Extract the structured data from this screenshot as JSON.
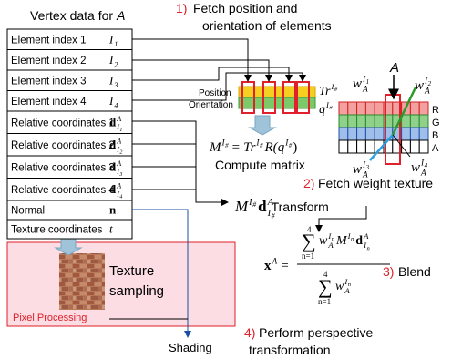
{
  "vertex_table": {
    "title": "Vertex data for",
    "title_var": "A",
    "rows": [
      {
        "label": "Element index 1",
        "symbol": {
          "base": "I",
          "sub": "1"
        }
      },
      {
        "label": "Element index 2",
        "symbol": {
          "base": "I",
          "sub": "2"
        }
      },
      {
        "label": "Element index 3",
        "symbol": {
          "base": "I",
          "sub": "3"
        }
      },
      {
        "label": "Element index 4",
        "symbol": {
          "base": "I",
          "sub": "4"
        }
      },
      {
        "label": "Relative coordinates 1",
        "symbol": {
          "base": "d",
          "bold": true,
          "sup": "A",
          "sub": "I",
          "subsub": "1"
        }
      },
      {
        "label": "Relative coordinates 2",
        "symbol": {
          "base": "d",
          "bold": true,
          "sup": "A",
          "sub": "I",
          "subsub": "2"
        }
      },
      {
        "label": "Relative coordinates 3",
        "symbol": {
          "base": "d",
          "bold": true,
          "sup": "A",
          "sub": "I",
          "subsub": "3"
        }
      },
      {
        "label": "Relative coordinates 4",
        "symbol": {
          "base": "d",
          "bold": true,
          "sup": "A",
          "sub": "I",
          "subsub": "4"
        }
      },
      {
        "label": "Normal",
        "symbol": {
          "base": "n",
          "bold": true
        }
      },
      {
        "label": "Texture coordinates",
        "symbol": {
          "base": "t"
        }
      }
    ]
  },
  "step1": {
    "number": "1)",
    "line1": "Fetch position and",
    "line2": "orientation of elements"
  },
  "element_texture": {
    "position": "Position",
    "orientation": "Orientation",
    "tr": {
      "base": "Tr",
      "sup": "I",
      "supsub": "#"
    },
    "q": {
      "base": "q",
      "sup": "I",
      "supsub": "#"
    }
  },
  "compute": {
    "m": {
      "base": "M",
      "sup": "I",
      "supsub": "#"
    },
    "equals": "=",
    "tr": {
      "base": "Tr",
      "sup": "I",
      "supsub": "#"
    },
    "r_open": "R(",
    "q": {
      "base": "q",
      "sup": "I",
      "supsub": "#"
    },
    "r_close": ")",
    "caption": "Compute matrix"
  },
  "weight_texture": {
    "marker": "A",
    "channels": [
      "R",
      "G",
      "B",
      "A"
    ],
    "weights": [
      {
        "base": "w",
        "sup": "I",
        "supsub": "1",
        "sub": "A"
      },
      {
        "base": "w",
        "sup": "I",
        "supsub": "2",
        "sub": "A"
      },
      {
        "base": "w",
        "sup": "I",
        "supsub": "3",
        "sub": "A"
      },
      {
        "base": "w",
        "sup": "I",
        "supsub": "4",
        "sub": "A"
      }
    ]
  },
  "step2": {
    "number": "2)",
    "text": "Fetch weight texture"
  },
  "transform": {
    "m": {
      "base": "M",
      "sup": "I",
      "supsub": "#"
    },
    "d": {
      "base": "d",
      "bold": true,
      "sup": "A",
      "sub": "I",
      "subsub": "#"
    },
    "caption": "Transform"
  },
  "blend": {
    "x": {
      "base": "x",
      "bold": true,
      "sup": "A"
    },
    "equals": "=",
    "numerator": {
      "sum": "∑",
      "upper": "4",
      "lower": "n=1",
      "w": {
        "base": "w",
        "sup": "I",
        "supsub": "n",
        "sub": "A"
      },
      "m": {
        "base": "M",
        "sup": "I",
        "supsub": "n"
      },
      "d": {
        "base": "d",
        "bold": true,
        "sup": "A",
        "sub": "I",
        "subsub": "n"
      }
    },
    "denominator": {
      "sum": "∑",
      "upper": "4",
      "lower": "n=1",
      "w": {
        "base": "w",
        "sup": "I",
        "supsub": "n",
        "sub": "A"
      }
    }
  },
  "step3": {
    "number": "3)",
    "text": "Blend"
  },
  "pixel": {
    "label": "Pixel Processing",
    "line1": "Texture",
    "line2": "sampling"
  },
  "shading": "Shading",
  "step4": {
    "number": "4)",
    "line1": "Perform perspective",
    "line2": "transformation"
  }
}
